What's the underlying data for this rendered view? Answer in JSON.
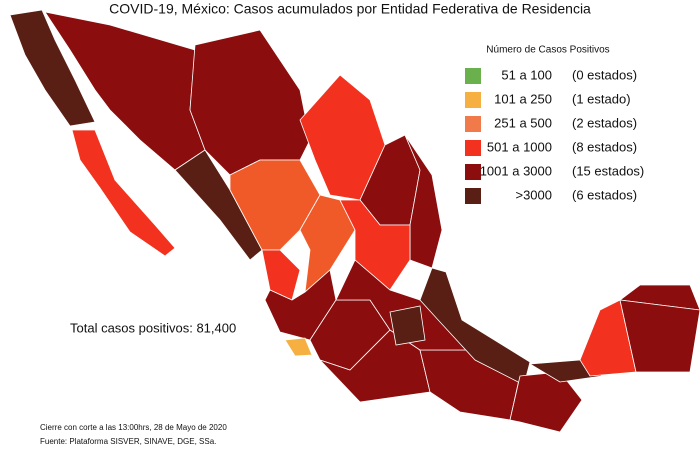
{
  "title": "COVID-19, México: Casos acumulados por Entidad Federativa de Residencia",
  "legend": {
    "title": "Número de Casos Positivos",
    "items": [
      {
        "color": "#6ab04c",
        "range": "51 a 100",
        "count": "(0 estados)"
      },
      {
        "color": "#f5b041",
        "range": "101 a 250",
        "count": "(1 estado)"
      },
      {
        "color": "#f07a4a",
        "range": "251 a 500",
        "count": "(2 estados)"
      },
      {
        "color": "#f2321e",
        "range": "501 a 1000",
        "count": "(8 estados)"
      },
      {
        "color": "#8b0d0d",
        "range": "1001 a 3000",
        "count": "(15 estados)"
      },
      {
        "color": "#5a1f14",
        "range": ">3000",
        "count": "(6 estados)"
      }
    ]
  },
  "total": "Total casos positivos: 81,400",
  "footer": [
    "Cierre con corte a las 13:00hrs, 28 de Mayo de 2020",
    "Fuente: Plataforma SISVER, SINAVE, DGE, SSa."
  ]
}
